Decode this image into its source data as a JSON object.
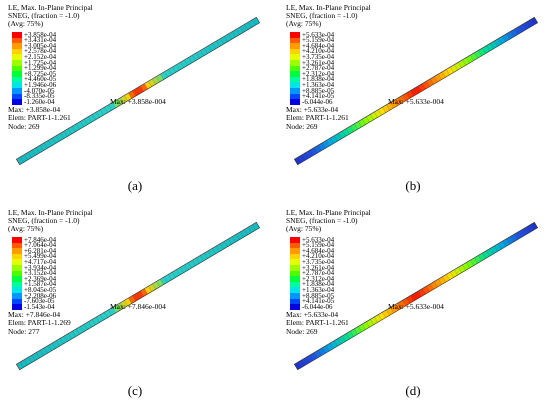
{
  "panels": [
    {
      "header": [
        "LE, Max. In-Plane Principal",
        "SNEG, (fraction = -1.0)",
        "(Avg: 75%)"
      ],
      "legend": [
        "+3.858e-04",
        "+3.431e-04",
        "+3.005e-04",
        "+2.578e-04",
        "+2.152e-04",
        "+1.725e-04",
        "+1.299e-04",
        "+8.725e-05",
        "+4.460e-05",
        "+1.946e-06",
        "-4.070e-05",
        "-8.335e-05",
        "-1.260e-04"
      ],
      "footer": [
        "Max: +3.858e-04",
        "Elem: PART-1-1.261",
        "Node: 269"
      ],
      "max_label": "Max: +3.858e-004",
      "caption": "(a)",
      "colormap": "cyan-uniform"
    },
    {
      "header": [
        "LE, Max. In-Plane Principal",
        "SNEG, (fraction = -1.0)",
        "(Avg: 75%)"
      ],
      "legend": [
        "+5.633e-04",
        "+5.159e-04",
        "+4.684e-04",
        "+4.210e-04",
        "+3.735e-04",
        "+3.261e-04",
        "+2.787e-04",
        "+2.312e-04",
        "+1.838e-04",
        "+1.363e-04",
        "+8.885e-05",
        "+4.141e-05",
        "-6.044e-06"
      ],
      "footer": [
        "Max: +5.633e-04",
        "Elem: PART-1-1.261",
        "Node: 269"
      ],
      "max_label": "Max: +5.633e-004",
      "caption": "(b)",
      "colormap": "full-gradient"
    },
    {
      "header": [
        "LE, Max. In-Plane Principal",
        "SNEG, (fraction = -1.0)",
        "(Avg: 75%)"
      ],
      "legend": [
        "+7.846e-04",
        "+7.064e-04",
        "+6.281e-04",
        "+5.499e-04",
        "+4.717e-04",
        "+3.934e-04",
        "+3.152e-04",
        "+2.369e-04",
        "+1.587e-04",
        "+8.045e-05",
        "+2.208e-06",
        "-7.603e-05",
        "-1.543e-04"
      ],
      "footer": [
        "Max: +7.846e-04",
        "Elem: PART-1-1.269",
        "Node: 277"
      ],
      "max_label": "Max: +7.846e-004",
      "caption": "(c)",
      "colormap": "cyan-uniform"
    },
    {
      "header": [
        "LE, Max. In-Plane Principal",
        "SNEG, (fraction = -1.0)",
        "(Avg: 75%)"
      ],
      "legend": [
        "+5.633e-04",
        "+5.159e-04",
        "+4.684e-04",
        "+4.210e-04",
        "+3.735e-04",
        "+3.261e-04",
        "+2.787e-04",
        "+2.312e-04",
        "+1.838e-04",
        "+1.363e-04",
        "+8.885e-05",
        "+4.141e-05",
        "-6.044e-06"
      ],
      "footer": [
        "Max: +5.633e-04",
        "Elem: PART-1-1.261",
        "Node: 269"
      ],
      "max_label": "Max: +5.633e-004",
      "caption": "(d)",
      "colormap": "full-gradient"
    }
  ],
  "legend_colors": [
    "#ff0000",
    "#ff5a00",
    "#ff9a00",
    "#ffd200",
    "#e6ff00",
    "#9cff00",
    "#4cff00",
    "#00ff3c",
    "#00ff9c",
    "#00e6e6",
    "#0096ff",
    "#0046ff",
    "#0000e0"
  ]
}
